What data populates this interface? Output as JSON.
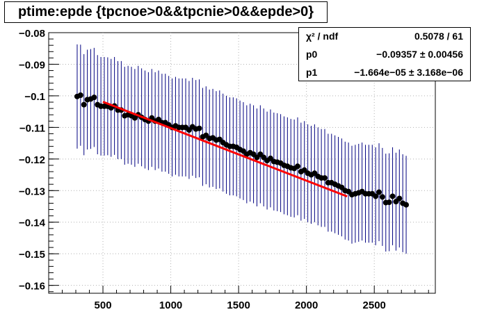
{
  "title": "ptime:epde {tpcnoe>0&&tpcnie>0&&epde>0}",
  "stats": {
    "rows": [
      {
        "name": "χ² / ndf",
        "value": "0.5078 / 61"
      },
      {
        "name": "p0",
        "value": "−0.09357 ± 0.00456"
      },
      {
        "name": "p1",
        "value": "−1.664e−05 ± 3.168e−06"
      }
    ]
  },
  "colors": {
    "points": "#000000",
    "errorbars": "#000080",
    "fit": "#ff0000",
    "grid": "#b0b0b0"
  },
  "chart_data": {
    "type": "scatter",
    "title": "ptime:epde {tpcnoe>0&&tpcnie>0&&epde>0}",
    "xlim": [
      100,
      2950
    ],
    "ylim": [
      -0.1625,
      -0.08
    ],
    "xticks": [
      500,
      1000,
      1500,
      2000,
      2500
    ],
    "xtick_labels": [
      "500",
      "1000",
      "1500",
      "2000",
      "2500"
    ],
    "yticks": [
      -0.16,
      -0.15,
      -0.14,
      -0.13,
      -0.12,
      -0.11,
      -0.1,
      -0.09,
      -0.08
    ],
    "ytick_labels": [
      "−0.16",
      "−0.15",
      "−0.14",
      "−0.13",
      "−0.12",
      "−0.11",
      "−0.1",
      "−0.09",
      "−0.08"
    ],
    "grid": true,
    "x": [
      310,
      335,
      360,
      385,
      410,
      435,
      460,
      485,
      510,
      535,
      560,
      585,
      610,
      635,
      660,
      685,
      710,
      735,
      760,
      785,
      810,
      835,
      860,
      885,
      910,
      935,
      960,
      985,
      1010,
      1035,
      1060,
      1085,
      1110,
      1135,
      1160,
      1185,
      1210,
      1235,
      1260,
      1285,
      1310,
      1335,
      1360,
      1385,
      1410,
      1435,
      1460,
      1485,
      1510,
      1535,
      1560,
      1585,
      1610,
      1635,
      1660,
      1685,
      1710,
      1735,
      1760,
      1785,
      1810,
      1835,
      1860,
      1885,
      1910,
      1935,
      1960,
      1985,
      2010,
      2035,
      2060,
      2085,
      2110,
      2135,
      2160,
      2185,
      2210,
      2235,
      2260,
      2285,
      2310,
      2335,
      2360,
      2385,
      2410,
      2435,
      2460,
      2485,
      2510,
      2535,
      2560,
      2585,
      2610,
      2635,
      2660,
      2685,
      2710,
      2735
    ],
    "y": [
      -0.1002,
      -0.0998,
      -0.1028,
      -0.1012,
      -0.101,
      -0.1005,
      -0.1028,
      -0.1033,
      -0.1033,
      -0.1033,
      -0.1038,
      -0.1032,
      -0.1045,
      -0.1045,
      -0.1063,
      -0.106,
      -0.1063,
      -0.107,
      -0.106,
      -0.1068,
      -0.1075,
      -0.108,
      -0.107,
      -0.108,
      -0.1075,
      -0.1085,
      -0.1085,
      -0.1092,
      -0.11,
      -0.1095,
      -0.11,
      -0.11,
      -0.11,
      -0.1108,
      -0.1098,
      -0.1105,
      -0.1103,
      -0.113,
      -0.1125,
      -0.1135,
      -0.1133,
      -0.114,
      -0.1138,
      -0.1148,
      -0.1155,
      -0.116,
      -0.116,
      -0.1163,
      -0.117,
      -0.1175,
      -0.1185,
      -0.118,
      -0.1185,
      -0.1195,
      -0.1185,
      -0.1195,
      -0.1205,
      -0.1198,
      -0.1208,
      -0.121,
      -0.1213,
      -0.122,
      -0.1223,
      -0.1228,
      -0.123,
      -0.1223,
      -0.124,
      -0.1235,
      -0.1245,
      -0.125,
      -0.1245,
      -0.1255,
      -0.126,
      -0.126,
      -0.1275,
      -0.1275,
      -0.128,
      -0.1285,
      -0.129,
      -0.13,
      -0.1303,
      -0.1313,
      -0.131,
      -0.1307,
      -0.1303,
      -0.131,
      -0.131,
      -0.131,
      -0.1318,
      -0.1305,
      -0.132,
      -0.1338,
      -0.1337,
      -0.1318,
      -0.1335,
      -0.1325,
      -0.134,
      -0.1345
    ],
    "yerr": [
      0.0165,
      0.016,
      0.016,
      0.0158,
      0.0158,
      0.0157,
      0.0157,
      0.0156,
      0.0156,
      0.0155,
      0.0155,
      0.0155,
      0.0155,
      0.0155,
      0.0155,
      0.0155,
      0.0155,
      0.0155,
      0.0155,
      0.0155,
      0.0155,
      0.0155,
      0.0155,
      0.0155,
      0.0155,
      0.0155,
      0.0155,
      0.0155,
      0.0155,
      0.0155,
      0.0155,
      0.0155,
      0.0155,
      0.0155,
      0.0155,
      0.0155,
      0.0155,
      0.0155,
      0.0155,
      0.0155,
      0.0155,
      0.0155,
      0.0155,
      0.0155,
      0.0155,
      0.0155,
      0.0155,
      0.0155,
      0.0155,
      0.0155,
      0.0155,
      0.0155,
      0.0155,
      0.0155,
      0.0155,
      0.0155,
      0.0155,
      0.0155,
      0.0155,
      0.0155,
      0.0155,
      0.0155,
      0.0155,
      0.0155,
      0.0155,
      0.0155,
      0.0155,
      0.0155,
      0.0155,
      0.0155,
      0.0155,
      0.0155,
      0.0155,
      0.0155,
      0.0155,
      0.0155,
      0.0155,
      0.0155,
      0.0155,
      0.0155,
      0.0155,
      0.0155,
      0.0155,
      0.0155,
      0.0155,
      0.0155,
      0.0155,
      0.0155,
      0.0155,
      0.0155,
      0.0155,
      0.0155,
      0.0155,
      0.0155,
      0.0155,
      0.0155,
      0.0155,
      0.0155
    ],
    "fit": {
      "x": [
        500,
        2300
      ],
      "p0": -0.09357,
      "p1": -1.664e-05
    }
  }
}
